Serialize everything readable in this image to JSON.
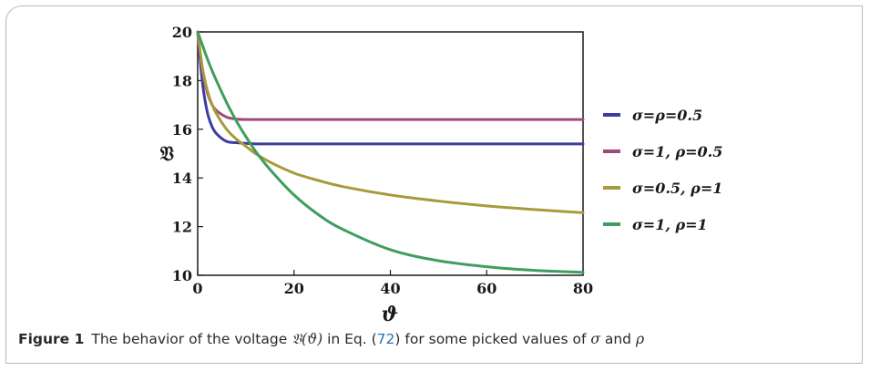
{
  "chart_data": {
    "type": "line",
    "xlabel": "ϑ",
    "ylabel": "𝔙",
    "xlim": [
      0,
      80
    ],
    "ylim": [
      10,
      20
    ],
    "xticks": [
      0,
      20,
      40,
      60,
      80
    ],
    "yticks": [
      10,
      12,
      14,
      16,
      18,
      20
    ],
    "x_tick_labels": [
      "0",
      "20",
      "40",
      "60",
      "80"
    ],
    "y_tick_labels": [
      "10",
      "12",
      "14",
      "16",
      "18",
      "20"
    ],
    "grid": false,
    "legend_position": "right",
    "x": [
      0,
      1,
      2,
      3,
      4,
      6,
      8,
      10,
      12,
      15,
      20,
      25,
      30,
      40,
      50,
      60,
      70,
      80
    ],
    "series": [
      {
        "name": "σ=ρ=0.5",
        "color": "#3b3ea0",
        "values": [
          20,
          17.9,
          16.7,
          16.1,
          15.8,
          15.5,
          15.45,
          15.42,
          15.4,
          15.4,
          15.4,
          15.4,
          15.4,
          15.4,
          15.4,
          15.4,
          15.4,
          15.4
        ]
      },
      {
        "name": "σ=1, ρ=0.5",
        "color": "#a04a7c",
        "values": [
          20,
          18.4,
          17.5,
          17.0,
          16.75,
          16.5,
          16.42,
          16.4,
          16.4,
          16.4,
          16.4,
          16.4,
          16.4,
          16.4,
          16.4,
          16.4,
          16.4,
          16.4
        ]
      },
      {
        "name": "σ=0.5, ρ=1",
        "color": "#a89a3c",
        "values": [
          20,
          18.5,
          17.6,
          17.0,
          16.6,
          16.0,
          15.6,
          15.3,
          15.0,
          14.65,
          14.2,
          13.9,
          13.65,
          13.3,
          13.05,
          12.85,
          12.7,
          12.57
        ]
      },
      {
        "name": "σ=1, ρ=1",
        "color": "#3f9e5f",
        "values": [
          20,
          19.45,
          18.9,
          18.4,
          17.95,
          17.1,
          16.35,
          15.7,
          15.1,
          14.35,
          13.3,
          12.5,
          11.9,
          11.05,
          10.6,
          10.35,
          10.2,
          10.12
        ]
      }
    ]
  },
  "caption": {
    "label": "Figure 1",
    "text_before": "The behavior of the voltage ",
    "voltage_symbol": "𝔙(ϑ)",
    "text_middle": " in Eq. (",
    "eq_ref": "72",
    "text_after": ") for some picked values of ",
    "sigma": "σ",
    "and": " and ",
    "rho": "ρ"
  }
}
